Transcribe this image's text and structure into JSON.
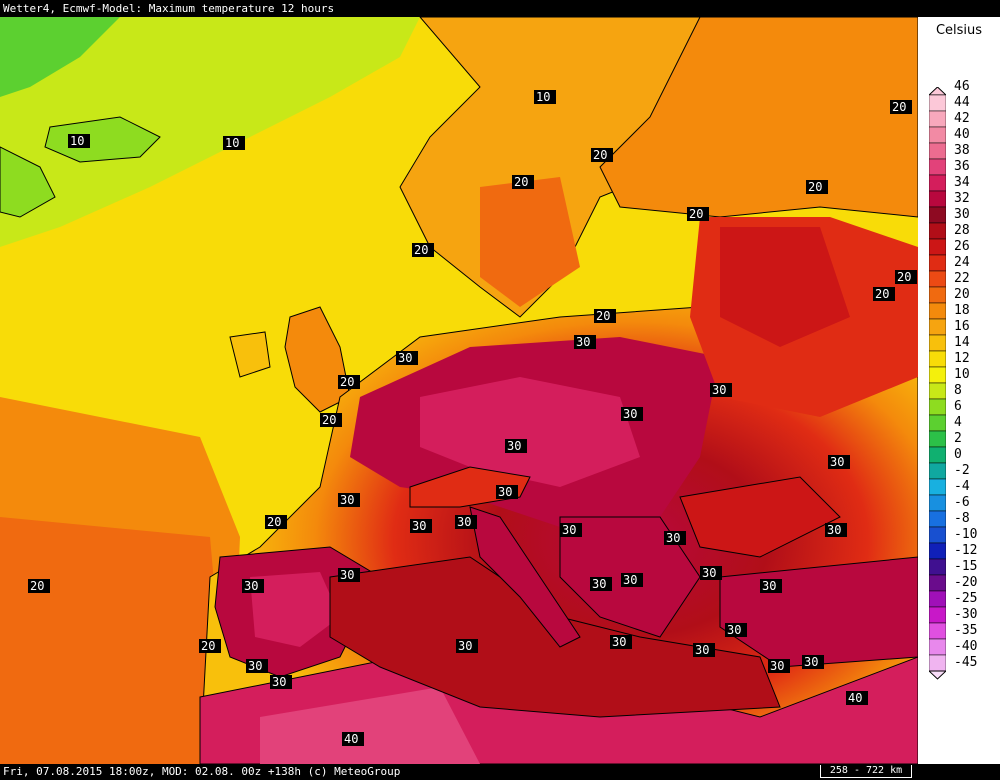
{
  "header": {
    "title": "Wetter4, Ecmwf-Model: Maximum temperature 12 hours"
  },
  "footer": {
    "info": "Fri, 07.08.2015 18:00z, MOD: 02.08. 00z +138h (c) MeteoGroup",
    "scale": "258 - 722 km"
  },
  "legend": {
    "unit": "Celsius",
    "levels": [
      "46",
      "44",
      "42",
      "40",
      "38",
      "36",
      "34",
      "32",
      "30",
      "28",
      "26",
      "24",
      "22",
      "20",
      "18",
      "16",
      "14",
      "12",
      "10",
      "8",
      "6",
      "4",
      "2",
      "0",
      "-2",
      "-4",
      "-6",
      "-8",
      "-10",
      "-12",
      "-15",
      "-20",
      "-25",
      "-30",
      "-35",
      "-40",
      "-45"
    ],
    "colors": [
      "#fcc8d8",
      "#f8a8bc",
      "#f28aa4",
      "#ec6c90",
      "#e2427a",
      "#d41e5c",
      "#b8083e",
      "#8e0a22",
      "#b10e18",
      "#cc1616",
      "#e02c14",
      "#ec4a14",
      "#f06a10",
      "#f48a0c",
      "#f6a410",
      "#f8c00c",
      "#f8dc08",
      "#f4f00c",
      "#c8e818",
      "#8edc20",
      "#5cd030",
      "#2cc048",
      "#10b070",
      "#10a8a0",
      "#18b0e0",
      "#1890e0",
      "#1870e0",
      "#1850d0",
      "#1020b8",
      "#401090",
      "#6a0c8c",
      "#a010b8",
      "#c818c8",
      "#e050e0",
      "#e888ec",
      "#f0b4f0",
      "#f8dcf8"
    ]
  },
  "map": {
    "contour_labels": [
      "10",
      "10",
      "10",
      "20",
      "20",
      "20",
      "20",
      "20",
      "20",
      "20",
      "20",
      "20",
      "20",
      "20",
      "20",
      "20",
      "20",
      "30",
      "30",
      "30",
      "30",
      "30",
      "30",
      "30",
      "30",
      "30",
      "30",
      "30",
      "30",
      "30",
      "30",
      "30",
      "30",
      "30",
      "30",
      "30",
      "30",
      "30",
      "30",
      "30",
      "30",
      "30",
      "30",
      "30",
      "40",
      "40"
    ]
  }
}
